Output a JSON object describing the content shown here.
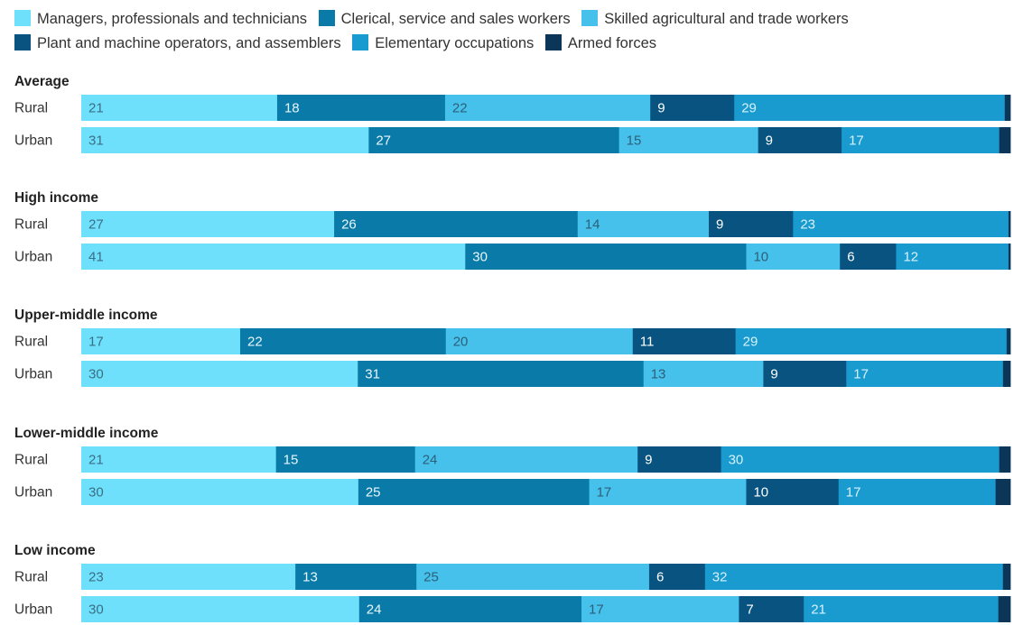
{
  "chart_data": {
    "type": "bar",
    "orientation": "horizontal",
    "stacked": true,
    "units": "percent",
    "legend_position": "top",
    "series": [
      {
        "name": "Managers, professionals and technicians",
        "color": "#6ee0fb",
        "label_color": "#3b6f86"
      },
      {
        "name": "Clerical, service and sales workers",
        "color": "#0a7aa8",
        "label_color": "#e8f6fc"
      },
      {
        "name": "Skilled agricultural and trade workers",
        "color": "#45c1ec",
        "label_color": "#2e5f78"
      },
      {
        "name": "Plant and machine operators, and assemblers",
        "color": "#08537f",
        "label_color": "#ffffff"
      },
      {
        "name": "Elementary occupations",
        "color": "#1a9bd0",
        "label_color": "#d6f1fb"
      },
      {
        "name": "Armed forces",
        "color": "#0c3658",
        "label_color": "#ffffff"
      }
    ],
    "groups": [
      {
        "title": "Average",
        "rows": [
          {
            "label": "Rural",
            "values": [
              21,
              18,
              22,
              9,
              29,
              0.6
            ]
          },
          {
            "label": "Urban",
            "values": [
              31,
              27,
              15,
              9,
              17,
              1.2
            ]
          }
        ]
      },
      {
        "title": "High income",
        "rows": [
          {
            "label": "Rural",
            "values": [
              27,
              26,
              14,
              9,
              23,
              0.2
            ]
          },
          {
            "label": "Urban",
            "values": [
              41,
              30,
              10,
              6,
              12,
              0.2
            ]
          }
        ]
      },
      {
        "title": "Upper-middle income",
        "rows": [
          {
            "label": "Rural",
            "values": [
              17,
              22,
              20,
              11,
              29,
              0.4
            ]
          },
          {
            "label": "Urban",
            "values": [
              30,
              31,
              13,
              9,
              17,
              0.8
            ]
          }
        ]
      },
      {
        "title": "Lower-middle income",
        "rows": [
          {
            "label": "Rural",
            "values": [
              21,
              15,
              24,
              9,
              30,
              1.2
            ]
          },
          {
            "label": "Urban",
            "values": [
              30,
              25,
              17,
              10,
              17,
              1.6
            ]
          }
        ]
      },
      {
        "title": "Low income",
        "rows": [
          {
            "label": "Rural",
            "values": [
              23,
              13,
              25,
              6,
              32,
              0.8
            ]
          },
          {
            "label": "Urban",
            "values": [
              30,
              24,
              17,
              7,
              21,
              1.3
            ]
          }
        ]
      }
    ]
  }
}
